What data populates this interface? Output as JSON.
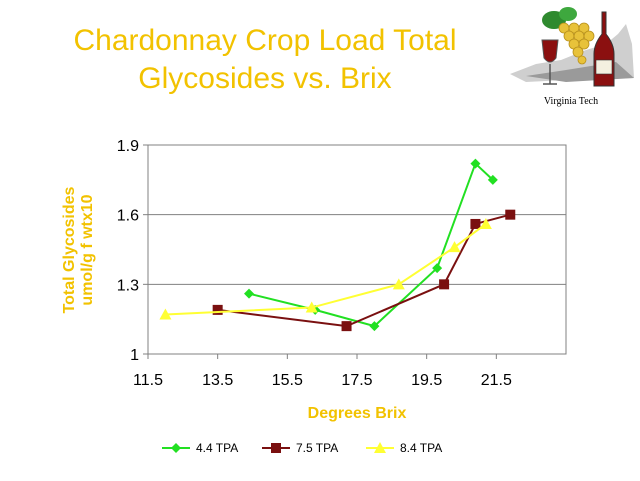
{
  "header": {
    "title_line1": "Chardonnay Crop Load Total",
    "title_line2": "Glycosides vs. Brix",
    "logo_caption": "Virginia Tech"
  },
  "colors": {
    "title": "#f2c200",
    "plot_border": "#808080",
    "grid": "#808080",
    "series": [
      "#22e022",
      "#7a1010",
      "#ffff33"
    ]
  },
  "chart_data": {
    "type": "line",
    "title": "Chardonnay Crop Load Total Glycosides vs. Brix",
    "xlabel": "Degrees Brix",
    "ylabel_line1": "Total Glycosides",
    "ylabel_line2": "umol/g f wtx10",
    "xlim": [
      11.5,
      23.5
    ],
    "ylim": [
      1.0,
      1.9
    ],
    "xticks": [
      "11.5",
      "13.5",
      "15.5",
      "17.5",
      "19.5",
      "21.5"
    ],
    "yticks": [
      "1",
      "1.3",
      "1.6",
      "1.9"
    ],
    "grid": "horizontal",
    "legend_position": "bottom",
    "series": [
      {
        "name": "4.4 TPA",
        "marker": "diamond",
        "x": [
          14.4,
          16.3,
          18.0,
          19.8,
          20.9,
          21.4
        ],
        "y": [
          1.26,
          1.19,
          1.12,
          1.37,
          1.82,
          1.75
        ]
      },
      {
        "name": "7.5 TPA",
        "marker": "square",
        "x": [
          13.5,
          17.2,
          20.0,
          20.9,
          21.9
        ],
        "y": [
          1.19,
          1.12,
          1.3,
          1.56,
          1.6
        ]
      },
      {
        "name": "8.4 TPA",
        "marker": "triangle",
        "x": [
          12.0,
          16.2,
          18.7,
          20.3,
          21.2
        ],
        "y": [
          1.17,
          1.2,
          1.3,
          1.46,
          1.56
        ]
      }
    ]
  }
}
